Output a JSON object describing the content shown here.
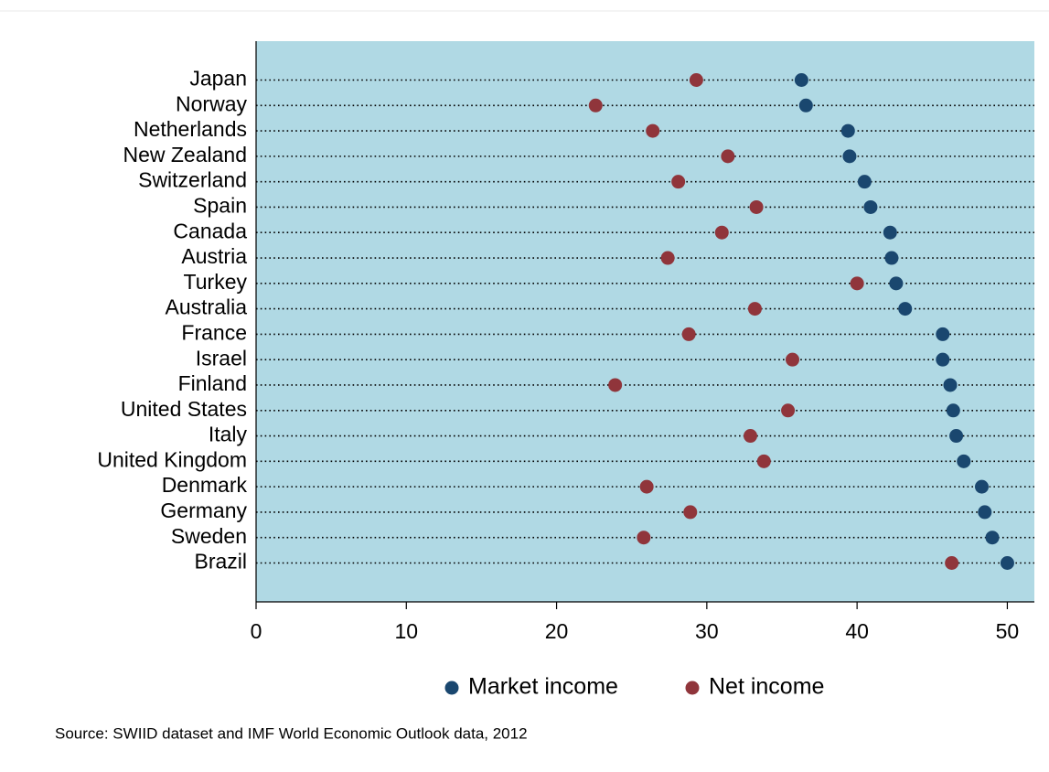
{
  "chart_data": {
    "type": "dot",
    "categories": [
      "Japan",
      "Norway",
      "Netherlands",
      "New Zealand",
      "Switzerland",
      "Spain",
      "Canada",
      "Austria",
      "Turkey",
      "Australia",
      "France",
      "Israel",
      "Finland",
      "United States",
      "Italy",
      "United Kingdom",
      "Denmark",
      "Germany",
      "Sweden",
      "Brazil"
    ],
    "series": [
      {
        "name": "Market income",
        "color": "#1a476f",
        "values": [
          36.3,
          36.6,
          39.4,
          39.5,
          40.5,
          40.9,
          42.2,
          42.3,
          42.6,
          43.2,
          45.7,
          45.7,
          46.2,
          46.4,
          46.6,
          47.1,
          48.3,
          48.5,
          49.0,
          50.0
        ]
      },
      {
        "name": "Net income",
        "color": "#90353b",
        "values": [
          29.3,
          22.6,
          26.4,
          31.4,
          28.1,
          33.3,
          31.0,
          27.4,
          40.0,
          33.2,
          28.8,
          35.7,
          23.9,
          35.4,
          32.9,
          33.8,
          26.0,
          28.9,
          25.8,
          46.3
        ]
      }
    ],
    "xlim": [
      0,
      51.8
    ],
    "xticks": [
      0,
      10,
      20,
      30,
      40,
      50
    ],
    "legend": "bottom",
    "plot_background": "#b0d9e4",
    "note": "Source: SWIID dataset and IMF World Economic Outlook data, 2012"
  }
}
